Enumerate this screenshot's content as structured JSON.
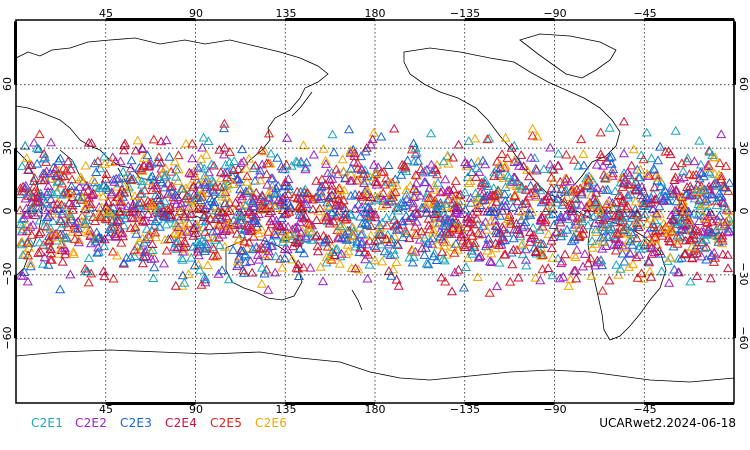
{
  "map": {
    "projection": "cylindrical",
    "center_longitude": 180,
    "top_longitude_labels": [
      "45",
      "90",
      "135",
      "180",
      "−135",
      "−90",
      "−45"
    ],
    "bottom_longitude_labels": [
      "45",
      "90",
      "135",
      "180",
      "−135",
      "−90",
      "−45"
    ],
    "latitude_labels": [
      "60",
      "30",
      "0",
      "−30",
      "−60"
    ],
    "marker": "open-triangle-icon",
    "observations_band_latitude": [
      -45,
      45
    ],
    "land_outline_color": "#000000"
  },
  "legend": {
    "items": [
      {
        "label": "C2E1",
        "color": "#1aa6c0"
      },
      {
        "label": "C2E2",
        "color": "#a020c8"
      },
      {
        "label": "C2E3",
        "color": "#1565d8"
      },
      {
        "label": "C2E4",
        "color": "#c8103c"
      },
      {
        "label": "C2E5",
        "color": "#e0201e"
      },
      {
        "label": "C2E6",
        "color": "#f0a800"
      }
    ]
  },
  "source_label": "UCARwet2.2024-06-18"
}
